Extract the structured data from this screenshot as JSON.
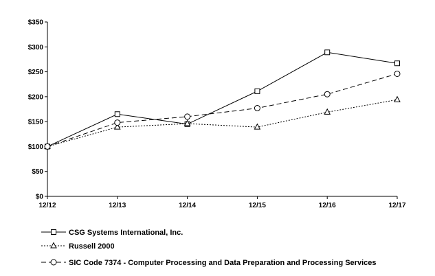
{
  "chart_data": {
    "type": "line",
    "title": "",
    "xlabel": "",
    "ylabel": "",
    "categories": [
      "12/12",
      "12/13",
      "12/14",
      "12/15",
      "12/16",
      "12/17"
    ],
    "ylim": [
      0,
      350
    ],
    "y_ticks": [
      {
        "value": 0,
        "label": "$0"
      },
      {
        "value": 50,
        "label": "$50"
      },
      {
        "value": 100,
        "label": "$100"
      },
      {
        "value": 150,
        "label": "$150"
      },
      {
        "value": 200,
        "label": "$200"
      },
      {
        "value": 250,
        "label": "$250"
      },
      {
        "value": 300,
        "label": "$300"
      },
      {
        "value": 350,
        "label": "$350"
      }
    ],
    "grid": false,
    "legend_position": "bottom",
    "series": [
      {
        "name": "CSG Systems International, Inc.",
        "marker": "square",
        "dash": "solid",
        "values": [
          100,
          165,
          145,
          211,
          289,
          267
        ]
      },
      {
        "name": "Russell 2000",
        "marker": "triangle",
        "dash": "dotted",
        "values": [
          100,
          139,
          146,
          139,
          169,
          194
        ]
      },
      {
        "name": "SIC Code 7374 - Computer Processing and Data Preparation and Processing Services",
        "marker": "circle",
        "dash": "dashed",
        "values": [
          100,
          148,
          160,
          177,
          205,
          246
        ]
      }
    ]
  }
}
